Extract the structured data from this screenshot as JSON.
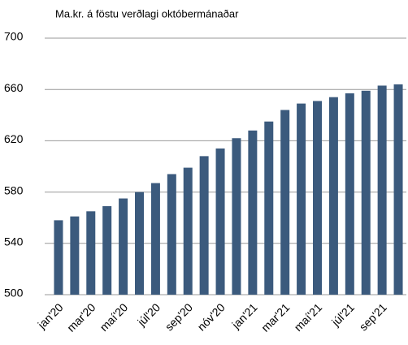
{
  "chart_data": {
    "type": "bar",
    "title": "Ma.kr. á föstu verðlagi októbermánaðar",
    "categories": [
      "jan'20",
      null,
      "mar'20",
      null,
      "maí'20",
      null,
      "júl'20",
      null,
      "sep'20",
      null,
      "nóv'20",
      null,
      "jan'21",
      null,
      "mar'21",
      null,
      "maí'21",
      null,
      "júl'21",
      null,
      "sep'21",
      null
    ],
    "values": [
      558,
      561,
      565,
      569,
      575,
      580,
      587,
      594,
      599,
      608,
      614,
      622,
      628,
      635,
      644,
      649,
      651,
      654,
      657,
      659,
      663,
      664
    ],
    "color": "#3b5a7d",
    "ylim": [
      500,
      700
    ],
    "yticks": [
      500,
      540,
      580,
      620,
      660,
      700
    ],
    "grid": true
  }
}
